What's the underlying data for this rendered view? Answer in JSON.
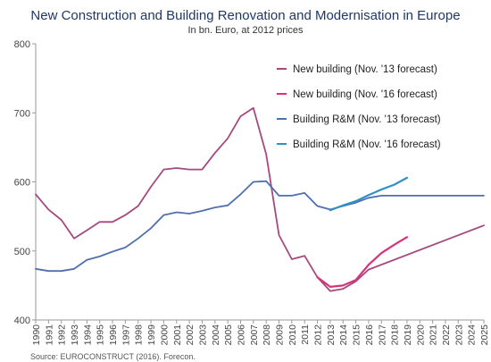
{
  "chart_data": {
    "type": "line",
    "title": "New Construction and Building Renovation and Modernisation in Europe",
    "subtitle": "In bn. Euro, at 2012 prices",
    "source": "Source: EUROCONSTRUCT (2016). Forecon.",
    "xlabel": "",
    "ylabel": "",
    "ylim": [
      400,
      800
    ],
    "yticks": [
      400,
      500,
      600,
      700,
      800
    ],
    "xlim": [
      1990,
      2025
    ],
    "x_tick_labels": [
      "1990",
      "1991",
      "1992",
      "1993",
      "1994",
      "1995",
      "1996",
      "1997",
      "1998",
      "1999",
      "2000",
      "2001",
      "2002",
      "2003",
      "2004",
      "2005",
      "2006",
      "2007",
      "2008",
      "2009",
      "2010",
      "2011",
      "2012",
      "2013",
      "2014",
      "2015",
      "2016",
      "2017",
      "2018",
      "2019",
      "2020",
      "2021",
      "2022",
      "2023",
      "2024",
      "2025"
    ],
    "grid": "none",
    "legend_position": "top-right",
    "series": [
      {
        "name": "New building (Nov. '13 forecast)",
        "color": "#a5497f",
        "x": [
          1990,
          1991,
          1992,
          1993,
          1994,
          1995,
          1996,
          1997,
          1998,
          1999,
          2000,
          2001,
          2002,
          2003,
          2004,
          2005,
          2006,
          2007,
          2008,
          2009,
          2010,
          2011,
          2012,
          2013,
          2014,
          2015,
          2016,
          2025
        ],
        "values": [
          582,
          560,
          545,
          518,
          530,
          542,
          542,
          552,
          565,
          593,
          618,
          620,
          618,
          618,
          642,
          663,
          695,
          707,
          640,
          523,
          488,
          493,
          462,
          442,
          445,
          456,
          473,
          537
        ]
      },
      {
        "name": "New building (Nov. '16 forecast)",
        "color": "#d6337b",
        "x": [
          2012,
          2013,
          2014,
          2015,
          2016,
          2017,
          2018,
          2019
        ],
        "values": [
          462,
          448,
          450,
          458,
          480,
          497,
          509,
          520
        ]
      },
      {
        "name": "Building R&M (Nov. '13 forecast)",
        "color": "#4f6fae",
        "x": [
          1990,
          1991,
          1992,
          1993,
          1994,
          1995,
          1996,
          1997,
          1998,
          1999,
          2000,
          2001,
          2002,
          2003,
          2004,
          2005,
          2006,
          2007,
          2008,
          2009,
          2010,
          2011,
          2012,
          2013,
          2014,
          2015,
          2016,
          2017,
          2025
        ],
        "values": [
          474,
          471,
          471,
          474,
          487,
          492,
          499,
          505,
          518,
          533,
          552,
          556,
          554,
          558,
          563,
          566,
          582,
          600,
          601,
          580,
          580,
          584,
          565,
          560,
          565,
          570,
          577,
          580,
          580
        ]
      },
      {
        "name": "Building R&M (Nov. '16 forecast)",
        "color": "#2f90c8",
        "x": [
          2013,
          2014,
          2015,
          2016,
          2017,
          2018,
          2019
        ],
        "values": [
          559,
          566,
          572,
          581,
          589,
          596,
          606
        ]
      }
    ]
  }
}
